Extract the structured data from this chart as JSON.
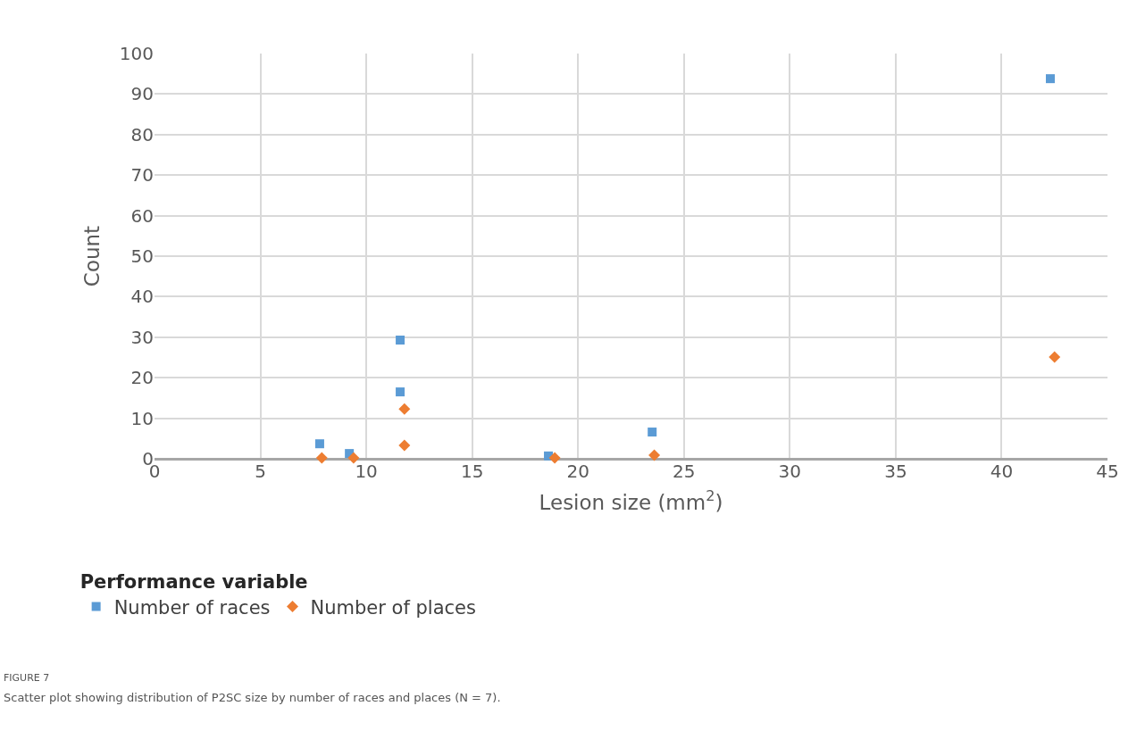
{
  "chart_data": {
    "type": "scatter",
    "xlabel": "Lesion size (mm$^{2}$)",
    "ylabel": "Count",
    "legend_title": "Performance variable",
    "xlim": [
      0,
      45
    ],
    "xticks": [
      0,
      5,
      10,
      15,
      20,
      25,
      30,
      35,
      40,
      45
    ],
    "ylim": [
      0,
      100
    ],
    "yticks": [
      0,
      10,
      20,
      30,
      40,
      50,
      60,
      70,
      80,
      90,
      100
    ],
    "grid": true,
    "legend": "bottom",
    "series": [
      {
        "name": "Number of races",
        "color": "#5b9bd5",
        "marker": "square",
        "x": [
          7.8,
          9.2,
          11.6,
          11.6,
          18.6,
          23.5,
          42.3
        ],
        "values": [
          3.7,
          1.3,
          29.3,
          16.5,
          0.7,
          6.6,
          93.8
        ]
      },
      {
        "name": "Number of places",
        "color": "#ed7d31",
        "marker": "diamond",
        "x": [
          7.9,
          9.4,
          11.8,
          11.8,
          18.9,
          23.6,
          42.5
        ],
        "values": [
          0.2,
          0.2,
          12.3,
          3.3,
          0.2,
          0.9,
          25.1
        ]
      }
    ],
    "annotations": [
      "FIGURE 7",
      "Scatter plot showing distribution of P2SC size by number of races and places (N = 7)."
    ]
  }
}
